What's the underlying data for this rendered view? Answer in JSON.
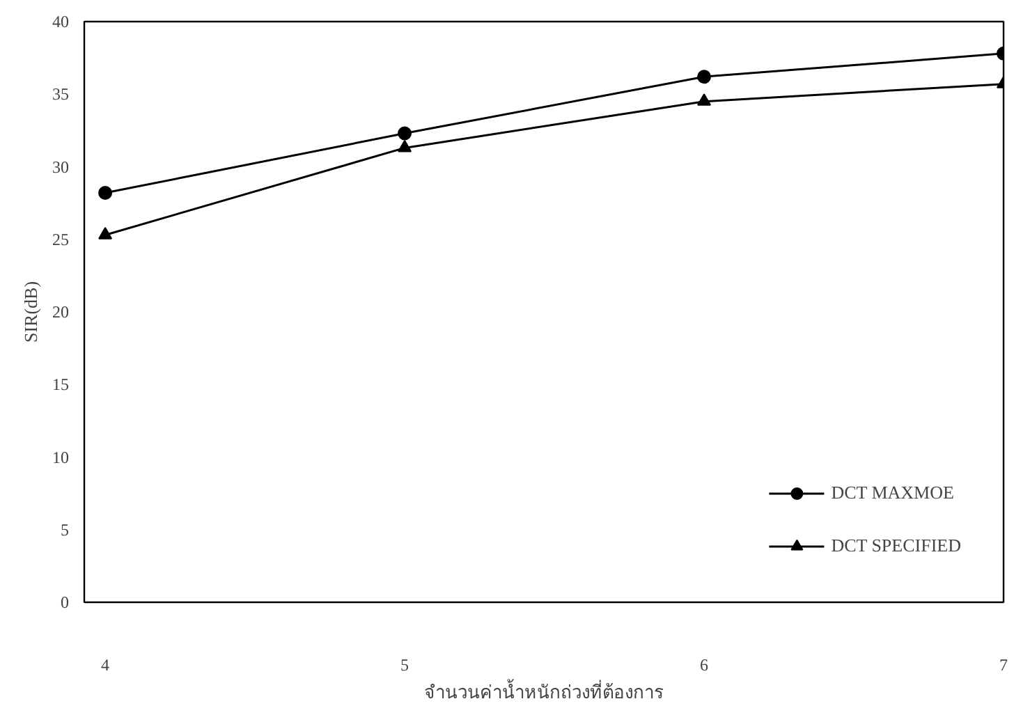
{
  "chart_data": {
    "type": "line",
    "xlabel": "จำนวนค่าน้ำหนักถ่วงที่ต้องการ",
    "ylabel": "SIR(dB)",
    "x": [
      4,
      5,
      6,
      7
    ],
    "series": [
      {
        "name": "DCT MAXMOE",
        "color": "#000000",
        "marker": "circle",
        "values": [
          28.2,
          32.3,
          36.2,
          37.8
        ]
      },
      {
        "name": "DCT SPECIFIED",
        "color": "#000000",
        "marker": "triangle",
        "values": [
          25.3,
          31.3,
          34.5,
          35.7
        ]
      }
    ],
    "xlim": [
      3.93,
      7.0
    ],
    "xticks": [
      4,
      5,
      6,
      7
    ],
    "ylim": [
      0,
      40
    ],
    "yticks": [
      0,
      5,
      10,
      15,
      20,
      25,
      30,
      35,
      40
    ],
    "grid": false,
    "legend": "bottom right",
    "line_style": "solid"
  }
}
